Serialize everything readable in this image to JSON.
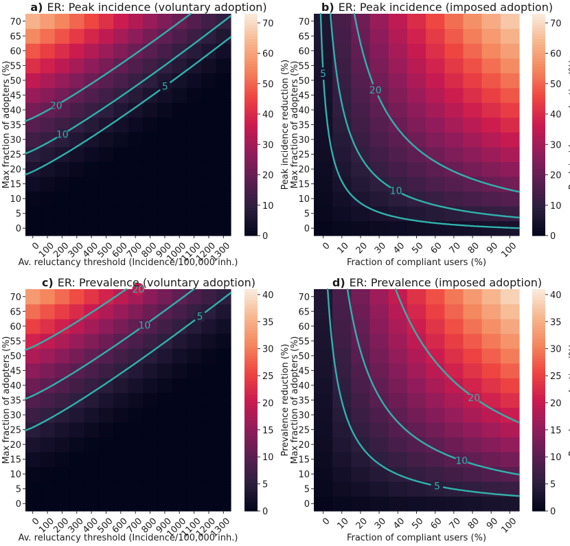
{
  "colors": {
    "contour": "#2fb3ac",
    "colormap": [
      "#03051a",
      "#2c1e3e",
      "#5b1e51",
      "#921c5b",
      "#cb1b4f",
      "#ee4541",
      "#f4875e",
      "#f6b78f",
      "#faebdd"
    ]
  },
  "chart_data": [
    {
      "panel": "a",
      "type": "heatmap",
      "title_tag": "a)",
      "title": "ER: Peak incidence (voluntary adoption)",
      "xlabel": "Av. reluctancy threshold (Incidence/100,000 inh.)",
      "ylabel": "Max fraction of adopters (%)",
      "colorbar_label": "Peak incidence reduction (%)",
      "x_ticks": [
        "0",
        "100",
        "200",
        "300",
        "400",
        "500",
        "600",
        "700",
        "800",
        "900",
        "1000",
        "1100",
        "1200",
        "1300"
      ],
      "y_ticks": [
        "0",
        "5",
        "10",
        "15",
        "20",
        "25",
        "30",
        "35",
        "40",
        "45",
        "50",
        "55",
        "60",
        "65",
        "70"
      ],
      "colorbar_ticks": [
        "0",
        "10",
        "20",
        "30",
        "40",
        "50",
        "60",
        "70"
      ],
      "vmax": 73,
      "field": "voluntary",
      "field_max": 71,
      "contour_levels": [
        5,
        10,
        20
      ],
      "contour_labels": [
        {
          "text": "20",
          "level": 20,
          "x_frac": 0.15
        },
        {
          "text": "10",
          "level": 10,
          "x_frac": 0.18
        },
        {
          "text": "5",
          "level": 5,
          "x_frac": 0.68
        }
      ]
    },
    {
      "panel": "b",
      "type": "heatmap",
      "title_tag": "b)",
      "title": "ER: Peak incidence (imposed adoption)",
      "xlabel": "Fraction of compliant users (%)",
      "ylabel": "Max fraction of adopters (%)",
      "colorbar_label": "Peak incidence reduction (%)",
      "x_ticks": [
        "0",
        "10",
        "20",
        "30",
        "40",
        "50",
        "60",
        "70",
        "80",
        "90",
        "100"
      ],
      "y_ticks": [
        "0",
        "5",
        "10",
        "15",
        "20",
        "25",
        "30",
        "35",
        "40",
        "45",
        "50",
        "55",
        "60",
        "65",
        "70"
      ],
      "colorbar_ticks": [
        "0",
        "10",
        "20",
        "30",
        "40",
        "50",
        "60",
        "70"
      ],
      "vmax": 73,
      "field": "imposed",
      "field_max": 71,
      "contour_levels": [
        5,
        10,
        20
      ],
      "contour_labels": [
        {
          "text": "5",
          "level": 5,
          "y_frac": 0.73
        },
        {
          "text": "20",
          "level": 20,
          "x_frac": 0.3
        },
        {
          "text": "10",
          "level": 10,
          "x_frac": 0.4
        }
      ]
    },
    {
      "panel": "c",
      "type": "heatmap",
      "title_tag": "c)",
      "title": "ER: Prevalence (voluntary adoption)",
      "xlabel": "Av. reluctancy threshold (Incidence/100,000 inh.)",
      "ylabel": "Max fraction of adopters (%)",
      "colorbar_label": "Prevalence reduction (%)",
      "x_ticks": [
        "0",
        "100",
        "200",
        "300",
        "400",
        "500",
        "600",
        "700",
        "800",
        "900",
        "1000",
        "1100",
        "1200",
        "1300"
      ],
      "y_ticks": [
        "0",
        "5",
        "10",
        "15",
        "20",
        "25",
        "30",
        "35",
        "40",
        "45",
        "50",
        "55",
        "60",
        "65",
        "70"
      ],
      "colorbar_ticks": [
        "0",
        "5",
        "10",
        "15",
        "20",
        "25",
        "30",
        "35",
        "40"
      ],
      "vmax": 41,
      "field": "voluntary",
      "field_max": 37,
      "contour_levels": [
        5,
        10,
        20
      ],
      "contour_labels": [
        {
          "text": "20",
          "level": 20,
          "x_frac": 0.55
        },
        {
          "text": "10",
          "level": 10,
          "x_frac": 0.58
        },
        {
          "text": "5",
          "level": 5,
          "x_frac": 0.85
        }
      ]
    },
    {
      "panel": "d",
      "type": "heatmap",
      "title_tag": "d)",
      "title": "ER: Prevalence (imposed adoption)",
      "xlabel": "Fraction of compliant users (%)",
      "ylabel": "Max fraction of adopters (%)",
      "colorbar_label": "Prevalence reduction (%)",
      "x_ticks": [
        "0",
        "10",
        "20",
        "30",
        "40",
        "50",
        "60",
        "70",
        "80",
        "90",
        "100"
      ],
      "y_ticks": [
        "0",
        "5",
        "10",
        "15",
        "20",
        "25",
        "30",
        "35",
        "40",
        "45",
        "50",
        "55",
        "60",
        "65",
        "70"
      ],
      "colorbar_ticks": [
        "0",
        "5",
        "10",
        "15",
        "20",
        "25",
        "30",
        "35",
        "40"
      ],
      "vmax": 41,
      "field": "imposed",
      "field_max": 41,
      "contour_levels": [
        5,
        10,
        20
      ],
      "contour_labels": [
        {
          "text": "20",
          "level": 20,
          "x_frac": 0.78
        },
        {
          "text": "10",
          "level": 10,
          "x_frac": 0.72
        },
        {
          "text": "5",
          "level": 5,
          "x_frac": 0.6
        }
      ]
    }
  ]
}
